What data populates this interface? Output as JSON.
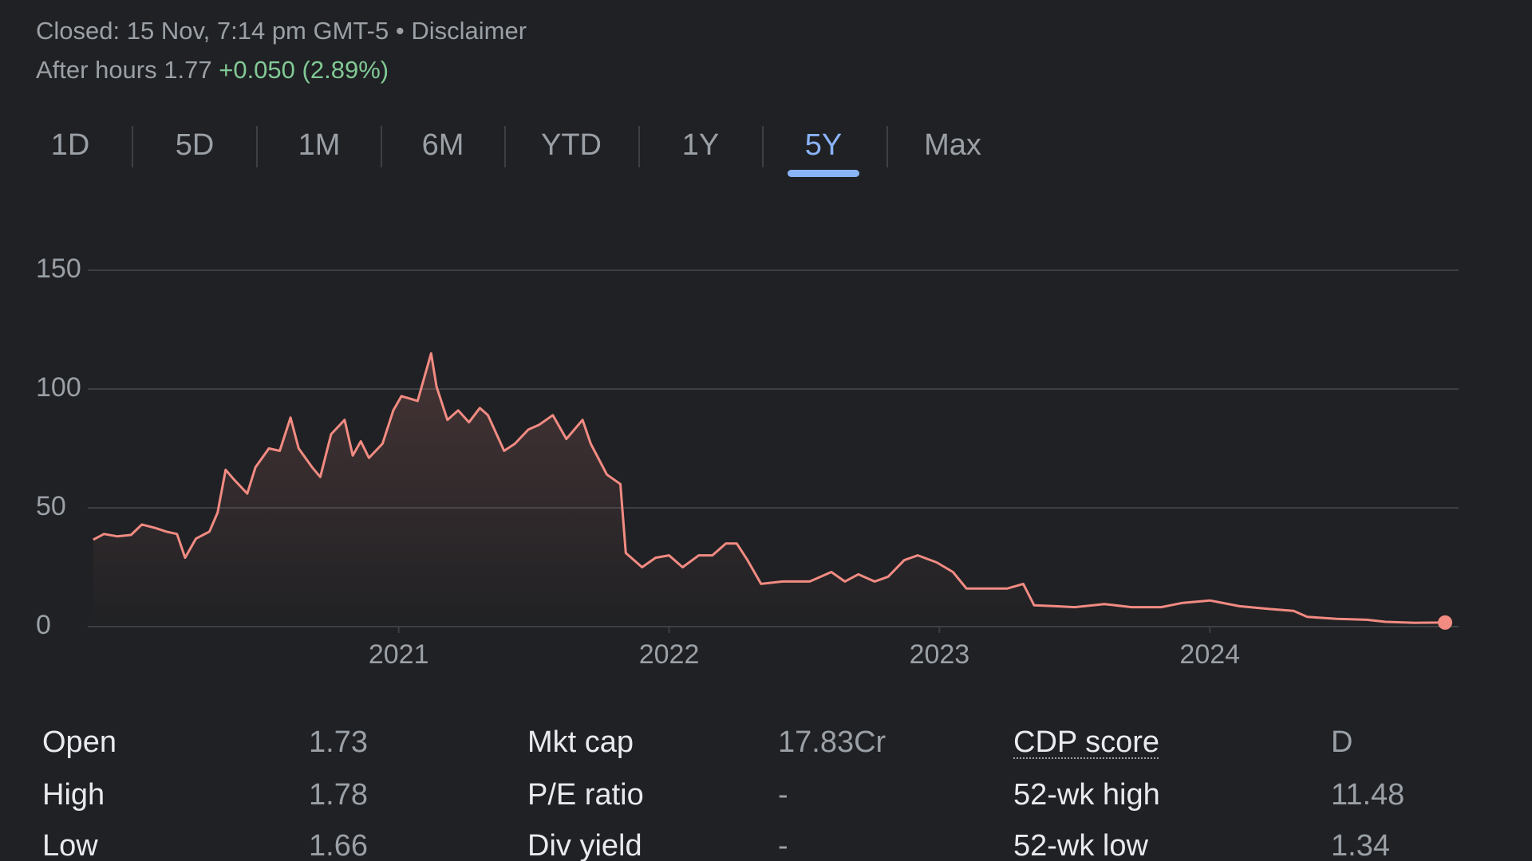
{
  "header": {
    "status": "Closed: 15 Nov, 7:14 pm GMT-5",
    "separator": "•",
    "disclaimer": "Disclaimer",
    "after_hours_label": "After hours",
    "after_hours_price": "1.77",
    "change": "+0.050",
    "change_pct": "(2.89%)"
  },
  "tabs": {
    "items": [
      "1D",
      "5D",
      "1M",
      "6M",
      "YTD",
      "1Y",
      "5Y",
      "Max"
    ],
    "selected": 6
  },
  "chart_data": {
    "type": "line",
    "color": "#f28b82",
    "area": true,
    "grid": true,
    "x": [
      2019.87,
      2019.91,
      2019.96,
      2020.01,
      2020.05,
      2020.1,
      2020.14,
      2020.18,
      2020.21,
      2020.25,
      2020.3,
      2020.33,
      2020.36,
      2020.39,
      2020.44,
      2020.47,
      2020.52,
      2020.56,
      2020.6,
      2020.63,
      2020.68,
      2020.71,
      2020.75,
      2020.8,
      2020.83,
      2020.86,
      2020.89,
      2020.94,
      2020.98,
      2021.01,
      2021.07,
      2021.12,
      2021.14,
      2021.18,
      2021.22,
      2021.26,
      2021.3,
      2021.33,
      2021.39,
      2021.43,
      2021.48,
      2021.52,
      2021.57,
      2021.62,
      2021.68,
      2021.71,
      2021.77,
      2021.82,
      2021.84,
      2021.9,
      2021.95,
      2022.0,
      2022.05,
      2022.11,
      2022.16,
      2022.21,
      2022.25,
      2022.29,
      2022.34,
      2022.42,
      2022.52,
      2022.6,
      2022.65,
      2022.7,
      2022.76,
      2022.81,
      2022.87,
      2022.92,
      2022.99,
      2023.05,
      2023.1,
      2023.17,
      2023.25,
      2023.31,
      2023.35,
      2023.43,
      2023.5,
      2023.61,
      2023.71,
      2023.82,
      2023.9,
      2024.0,
      2024.11,
      2024.22,
      2024.31,
      2024.36,
      2024.47,
      2024.58,
      2024.65,
      2024.76,
      2024.87
    ],
    "values": [
      36.6,
      39,
      38,
      38.6,
      43,
      41.5,
      40,
      39,
      29,
      37,
      40,
      48,
      66,
      62,
      56,
      67,
      75,
      74,
      88,
      75,
      67,
      63,
      81,
      87,
      72,
      78,
      71,
      77,
      91,
      97,
      95,
      115,
      101,
      87,
      91,
      86,
      92,
      89,
      74,
      77,
      83,
      85,
      89,
      79,
      87,
      77,
      64,
      60,
      31,
      25,
      29,
      30,
      25,
      30,
      30,
      35,
      35,
      28,
      18,
      19,
      19,
      23,
      19,
      22,
      19,
      21,
      28,
      30,
      27,
      23,
      16,
      16,
      16,
      18,
      9,
      8.6,
      8.2,
      9.5,
      8.2,
      8.2,
      10,
      11,
      8.6,
      7.4,
      6.6,
      4.1,
      3.3,
      2.9,
      2,
      1.6,
      1.72
    ],
    "xlim": [
      2019.85,
      2024.92
    ],
    "xticks": [
      2021,
      2022,
      2023,
      2024
    ],
    "ylim": [
      0,
      150
    ],
    "yticks": [
      0,
      50,
      100,
      150
    ]
  },
  "stats": {
    "columns": [
      [
        {
          "label": "Open",
          "value": "1.73"
        },
        {
          "label": "High",
          "value": "1.78"
        },
        {
          "label": "Low",
          "value": "1.66"
        }
      ],
      [
        {
          "label": "Mkt cap",
          "value": "17.83Cr"
        },
        {
          "label": "P/E ratio",
          "value": "-"
        },
        {
          "label": "Div yield",
          "value": "-"
        }
      ],
      [
        {
          "label": "CDP score",
          "value": "D"
        },
        {
          "label": "52-wk high",
          "value": "11.48"
        },
        {
          "label": "52-wk low",
          "value": "1.34"
        }
      ]
    ]
  }
}
